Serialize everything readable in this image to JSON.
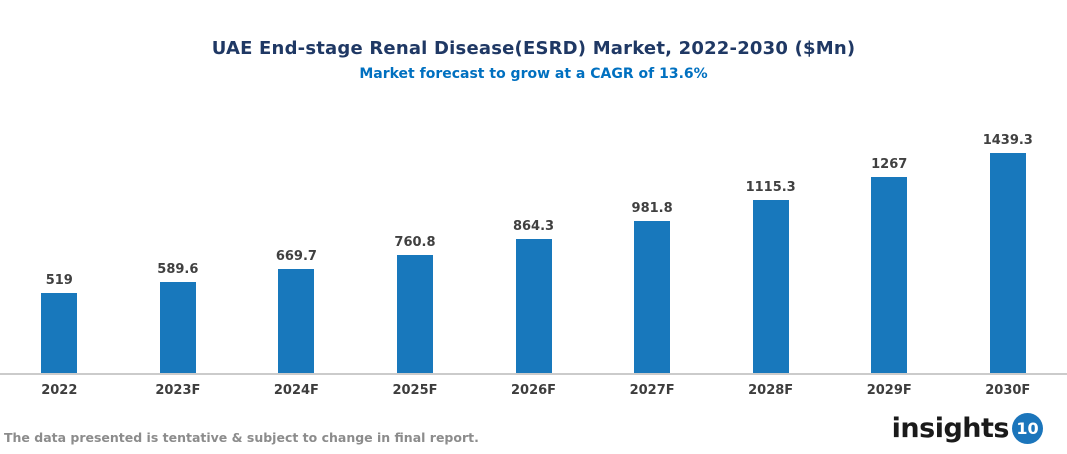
{
  "chart_data": {
    "type": "bar",
    "title": "UAE End-stage Renal Disease(ESRD) Market, 2022-2030 ($Mn)",
    "subtitle": "Market forecast to grow at a CAGR of 13.6%",
    "categories": [
      "2022",
      "2023F",
      "2024F",
      "2025F",
      "2026F",
      "2027F",
      "2028F",
      "2029F",
      "2030F"
    ],
    "values": [
      519,
      589.6,
      669.7,
      760.8,
      864.3,
      981.8,
      1115.3,
      1267,
      1439.3
    ],
    "xlabel": "",
    "ylabel": "",
    "ylim": [
      0,
      1550
    ],
    "grid": false,
    "legend": "none",
    "value_labels_shown": true
  },
  "colors": {
    "title": "#1f3864",
    "subtitle": "#0070c0",
    "bar": "#1878bc",
    "value_label": "#404040",
    "axis_tick_label": "#3d3d3d",
    "axis_line": "#cbcbcb",
    "disclaimer": "#8c8c8c",
    "logo_text": "#1a1a1a",
    "logo_badge_bg": "#1b75bb",
    "logo_badge_text": "#ffffff"
  },
  "footer": {
    "disclaimer": "The data presented is tentative & subject to change in final report.",
    "logo_text": "insights",
    "logo_number": "10"
  }
}
